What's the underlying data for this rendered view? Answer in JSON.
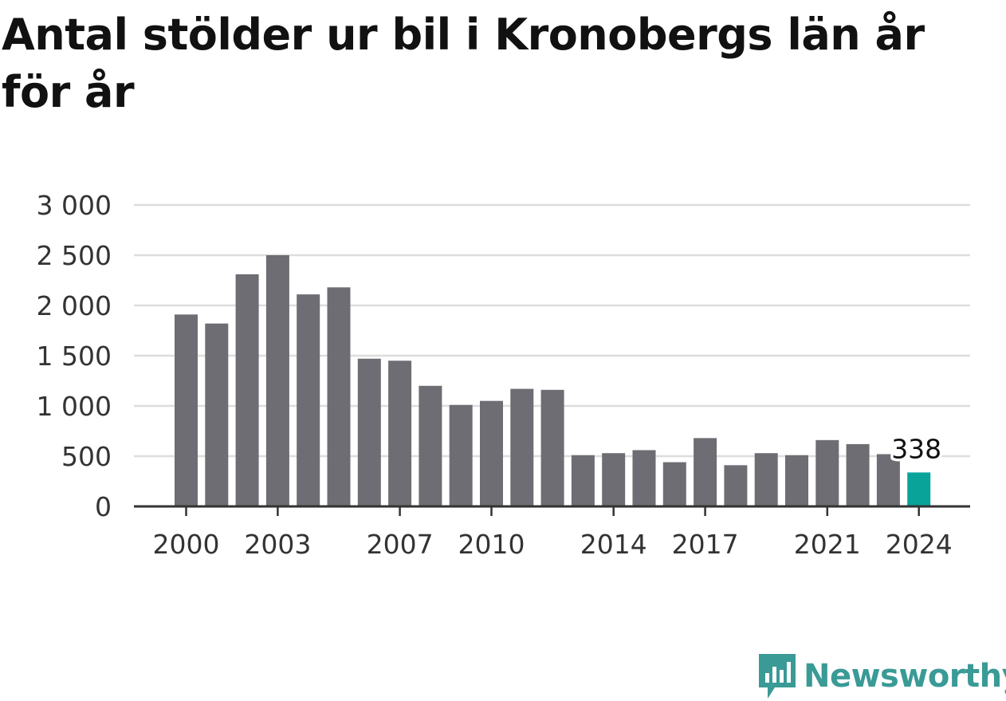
{
  "title": "Antal stölder ur bil i Kronobergs län år för år",
  "brand": "Newsworthy",
  "colors": {
    "bar": "#6e6d73",
    "highlight": "#0aa39a",
    "grid": "#dddddd",
    "axis": "#333333",
    "brand": "#3a9a96"
  },
  "chart_data": {
    "type": "bar",
    "categories": [
      "2000",
      "2001",
      "2002",
      "2003",
      "2004",
      "2005",
      "2006",
      "2007",
      "2008",
      "2009",
      "2010",
      "2011",
      "2012",
      "2013",
      "2014",
      "2015",
      "2016",
      "2017",
      "2018",
      "2019",
      "2020",
      "2021",
      "2022",
      "2023",
      "2024"
    ],
    "values": [
      1910,
      1820,
      2310,
      2500,
      2110,
      2180,
      1470,
      1450,
      1200,
      1010,
      1050,
      1170,
      1160,
      510,
      530,
      560,
      440,
      680,
      410,
      530,
      510,
      660,
      620,
      520,
      338
    ],
    "x_tick_labels": [
      "2000",
      "2003",
      "2007",
      "2010",
      "2014",
      "2017",
      "2021",
      "2024"
    ],
    "y_ticks": [
      0,
      500,
      1000,
      1500,
      2000,
      2500,
      3000
    ],
    "y_tick_labels": [
      "0",
      "500",
      "1 000",
      "1 500",
      "2 000",
      "2 500",
      "3 000"
    ],
    "ylim": [
      0,
      3000
    ],
    "highlight_category": "2024",
    "data_labels": [
      {
        "category": "2024",
        "text": "338"
      }
    ],
    "grid": true,
    "xlabel": "",
    "ylabel": ""
  }
}
